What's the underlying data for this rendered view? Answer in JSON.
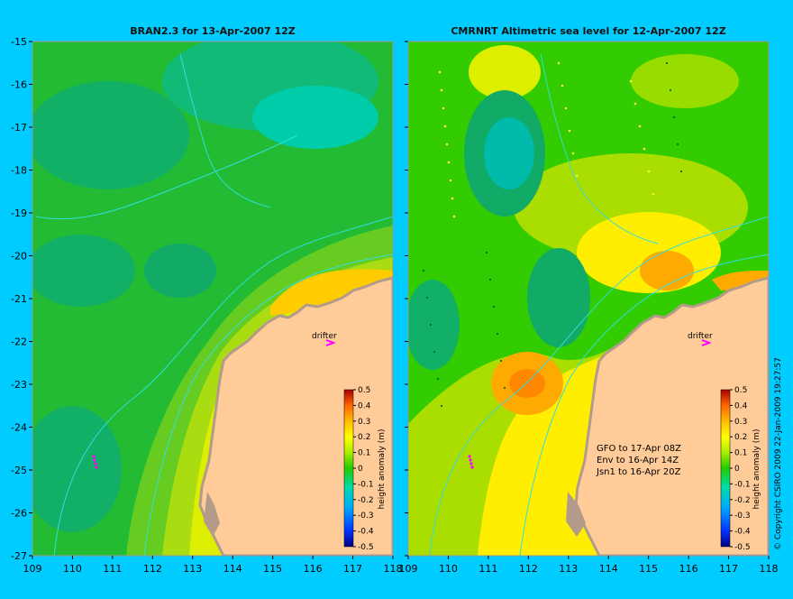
{
  "left_panel": {
    "title": "BRAN2.3 for 13-Apr-2007 12Z",
    "drifter_label": "drifter",
    "colorbar_label": "height anomaly (m)"
  },
  "right_panel": {
    "title": "CMRNRT Altimetric sea level  for 12-Apr-2007 12Z",
    "drifter_label": "drifter",
    "colorbar_label": "height anomaly (m)",
    "notes": [
      "GFO to 17-Apr 08Z",
      "Env to 16-Apr 14Z",
      "Jsn1 to 16-Apr 20Z"
    ]
  },
  "copyright": "© Copyright CSIRO 2009   22-Jan-2009 19:27:57",
  "axes": {
    "x_ticks": [
      "109",
      "110",
      "111",
      "112",
      "113",
      "114",
      "115",
      "116",
      "117",
      "118"
    ],
    "y_ticks": [
      "-15",
      "-16",
      "-17",
      "-18",
      "-19",
      "-20",
      "-21",
      "-22",
      "-23",
      "-24",
      "-25",
      "-26",
      "-27"
    ],
    "lon_range": [
      109,
      118
    ],
    "lat_range": [
      -27,
      -15
    ]
  },
  "colorbar": {
    "ticks": [
      "0.5",
      "0.4",
      "0.3",
      "0.2",
      "0.1",
      "0",
      "-0.1",
      "-0.2",
      "-0.3",
      "-0.4",
      "-0.5"
    ],
    "colors": [
      "#000080",
      "#0000cc",
      "#0055ff",
      "#00aaff",
      "#00dddd",
      "#00cc66",
      "#33cc00",
      "#99ee00",
      "#ffff00",
      "#ffcc00",
      "#ff9900",
      "#ff6600",
      "#dd3300",
      "#aa0000"
    ]
  },
  "colors": {
    "background": "#00ccff",
    "land": "#ffcc99",
    "coast_shadow": "#b39b8a",
    "drifter": "#ff00ff",
    "bathymetry_contour": "#33dddd"
  }
}
